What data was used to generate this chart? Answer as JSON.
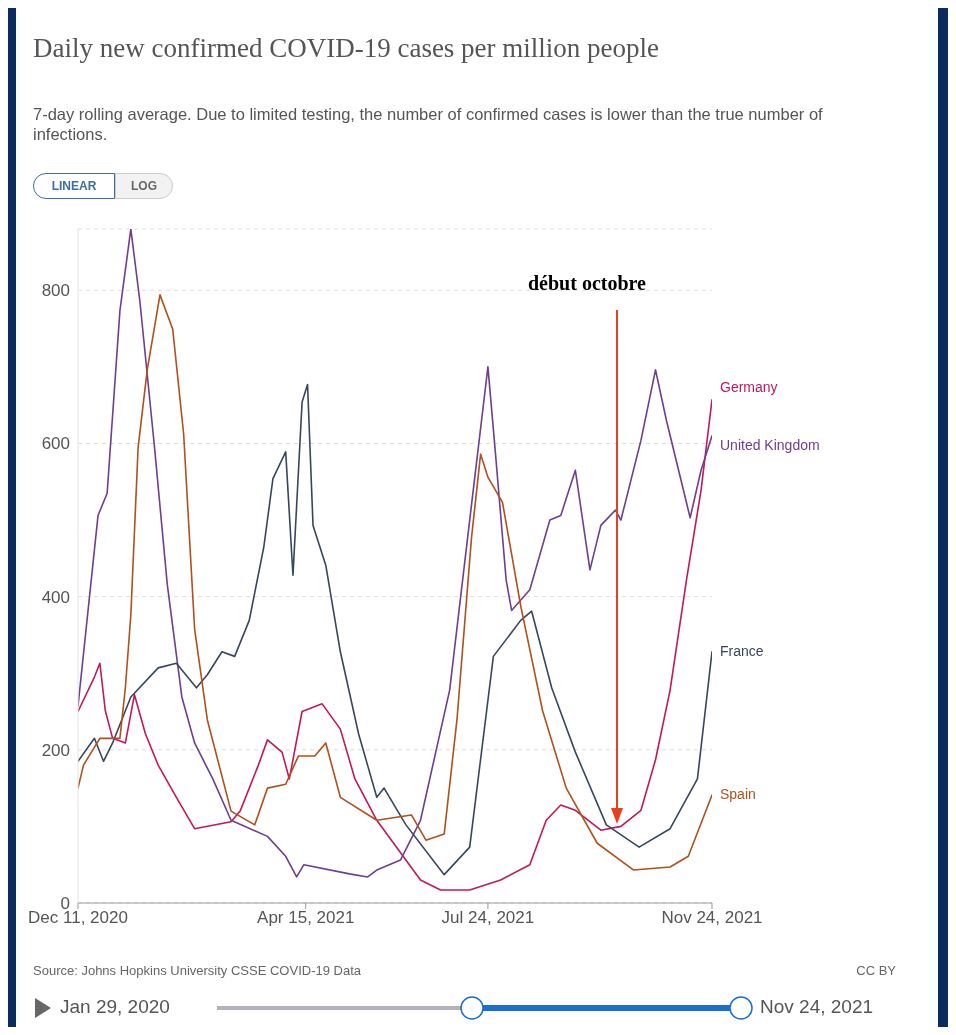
{
  "chart_data": {
    "type": "line",
    "title": "Daily new confirmed COVID-19 cases per million people",
    "subtitle": "7-day rolling average. Due to limited testing, the number of confirmed cases is lower than the true number of infections.",
    "xlim": [
      "2020-12-11",
      "2021-11-24"
    ],
    "xticks": [
      {
        "value": "2020-12-11",
        "label": "Dec 11, 2020"
      },
      {
        "value": "2021-04-15",
        "label": "Apr 15, 2021"
      },
      {
        "value": "2021-07-24",
        "label": "Jul 24, 2021"
      },
      {
        "value": "2021-11-24",
        "label": "Nov 24, 2021"
      }
    ],
    "ylim": [
      0,
      880
    ],
    "yticks": [
      0,
      200,
      400,
      600,
      800
    ],
    "grid": "y",
    "line_style": "solid",
    "series": [
      {
        "name": "Germany",
        "color": "#c2185b",
        "x": [
          "2020-12-11",
          "2020-12-20",
          "2020-12-23",
          "2020-12-26",
          "2020-12-30",
          "2021-01-06",
          "2021-01-11",
          "2021-01-17",
          "2021-01-24",
          "2021-02-03",
          "2021-02-13",
          "2021-03-05",
          "2021-03-10",
          "2021-03-20",
          "2021-03-25",
          "2021-04-02",
          "2021-04-06",
          "2021-04-13",
          "2021-04-24",
          "2021-05-04",
          "2021-05-12",
          "2021-05-24",
          "2021-06-17",
          "2021-06-28",
          "2021-07-14",
          "2021-07-31",
          "2021-08-16",
          "2021-08-25",
          "2021-09-02",
          "2021-09-10",
          "2021-09-24",
          "2021-10-05",
          "2021-10-16",
          "2021-10-24",
          "2021-11-01",
          "2021-11-10",
          "2021-11-18",
          "2021-11-24"
        ],
        "values": [
          250,
          295,
          313,
          251,
          215,
          209,
          272,
          221,
          180,
          138,
          97,
          106,
          120,
          180,
          213,
          197,
          162,
          250,
          260,
          227,
          162,
          108,
          30,
          17,
          17,
          30,
          50,
          108,
          128,
          121,
          95,
          100,
          121,
          187,
          278,
          422,
          539,
          657
        ]
      },
      {
        "name": "United Kingdom",
        "color": "#6d3e91",
        "x": [
          "2020-12-11",
          "2020-12-22",
          "2020-12-27",
          "2021-01-03",
          "2021-01-09",
          "2021-01-14",
          "2021-01-22",
          "2021-01-29",
          "2021-02-06",
          "2021-02-13",
          "2021-02-23",
          "2021-03-05",
          "2021-03-25",
          "2021-04-04",
          "2021-04-10",
          "2021-04-14",
          "2021-05-09",
          "2021-05-19",
          "2021-05-24",
          "2021-06-06",
          "2021-06-17",
          "2021-07-03",
          "2021-07-14",
          "2021-07-24",
          "2021-07-28",
          "2021-08-03",
          "2021-08-06",
          "2021-08-16",
          "2021-08-27",
          "2021-09-02",
          "2021-09-10",
          "2021-09-18",
          "2021-09-24",
          "2021-10-02",
          "2021-10-05",
          "2021-10-16",
          "2021-10-24",
          "2021-10-30",
          "2021-11-07",
          "2021-11-12",
          "2021-11-18",
          "2021-11-24"
        ],
        "values": [
          257,
          506,
          535,
          773,
          880,
          785,
          595,
          416,
          269,
          209,
          162,
          108,
          87,
          61,
          34,
          50,
          38,
          34,
          43,
          56,
          108,
          278,
          500,
          700,
          591,
          422,
          382,
          409,
          500,
          506,
          565,
          435,
          493,
          513,
          500,
          604,
          696,
          630,
          552,
          503,
          565,
          610
        ]
      },
      {
        "name": "France",
        "color": "#37465e",
        "x": [
          "2020-12-11",
          "2020-12-20",
          "2020-12-25",
          "2020-12-30",
          "2021-01-09",
          "2021-01-24",
          "2021-02-03",
          "2021-02-14",
          "2021-02-20",
          "2021-02-28",
          "2021-03-07",
          "2021-03-15",
          "2021-03-23",
          "2021-03-28",
          "2021-04-04",
          "2021-04-08",
          "2021-04-13",
          "2021-04-16",
          "2021-04-19",
          "2021-04-26",
          "2021-05-04",
          "2021-05-14",
          "2021-05-24",
          "2021-05-28",
          "2021-06-09",
          "2021-06-30",
          "2021-07-14",
          "2021-07-27",
          "2021-08-11",
          "2021-08-17",
          "2021-08-28",
          "2021-09-10",
          "2021-09-27",
          "2021-10-15",
          "2021-11-01",
          "2021-11-16",
          "2021-11-24"
        ],
        "values": [
          185,
          215,
          185,
          209,
          269,
          307,
          313,
          281,
          298,
          328,
          322,
          369,
          465,
          554,
          589,
          428,
          654,
          677,
          493,
          441,
          328,
          221,
          138,
          150,
          102,
          37,
          73,
          322,
          369,
          381,
          281,
          197,
          102,
          73,
          97,
          162,
          328
        ]
      },
      {
        "name": "Spain",
        "color": "#b0501c",
        "x": [
          "2020-12-11",
          "2020-12-14",
          "2020-12-23",
          "2021-01-03",
          "2021-01-06",
          "2021-01-09",
          "2021-01-13",
          "2021-01-18",
          "2021-01-25",
          "2021-02-01",
          "2021-02-07",
          "2021-02-13",
          "2021-02-20",
          "2021-03-05",
          "2021-03-18",
          "2021-03-25",
          "2021-04-04",
          "2021-04-11",
          "2021-04-20",
          "2021-04-26",
          "2021-05-04",
          "2021-05-24",
          "2021-06-12",
          "2021-06-20",
          "2021-06-30",
          "2021-07-07",
          "2021-07-15",
          "2021-07-20",
          "2021-07-24",
          "2021-08-01",
          "2021-08-11",
          "2021-08-23",
          "2021-09-05",
          "2021-09-22",
          "2021-10-12",
          "2021-11-01",
          "2021-11-11",
          "2021-11-24"
        ],
        "values": [
          150,
          180,
          215,
          215,
          281,
          376,
          595,
          696,
          794,
          749,
          612,
          358,
          239,
          120,
          102,
          150,
          155,
          192,
          192,
          209,
          138,
          108,
          115,
          82,
          90,
          239,
          477,
          586,
          556,
          523,
          388,
          251,
          150,
          78,
          43,
          47,
          61,
          141
        ]
      }
    ],
    "annotations": [
      "début octobre",
      "Source: Johns Hopkins University CSSE COVID-19 Data",
      "CC BY",
      "LINEAR",
      "LOG",
      "Jan 29, 2020",
      "Nov 24, 2021"
    ]
  }
}
